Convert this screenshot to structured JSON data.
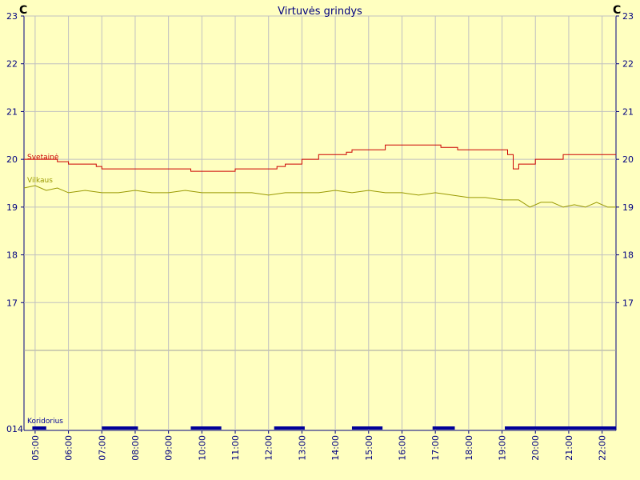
{
  "chart_data": {
    "type": "line",
    "title": "Virtuvės grindys",
    "unit_left": "C",
    "unit_right": "C",
    "y_ticks": [
      "23",
      "22",
      "21",
      "20",
      "19",
      "18",
      "17"
    ],
    "ylim": [
      16,
      23
    ],
    "x_ticks": [
      "05:00",
      "06:00",
      "07:00",
      "08:00",
      "09:00",
      "10:00",
      "11:00",
      "12:00",
      "13:00",
      "14:00",
      "15:00",
      "16:00",
      "17:00",
      "18:00",
      "19:00",
      "20:00",
      "21:00",
      "22:00"
    ],
    "xlim": [
      "04:40",
      "22:25"
    ],
    "grid": true,
    "series": [
      {
        "name": "Svetainė",
        "color": "#cc0000",
        "x": [
          "04:40",
          "05:35",
          "05:40",
          "06:00",
          "06:20",
          "06:50",
          "07:00",
          "09:30",
          "09:40",
          "10:30",
          "11:00",
          "12:00",
          "12:15",
          "12:30",
          "13:00",
          "13:30",
          "14:00",
          "14:20",
          "14:30",
          "15:30",
          "17:00",
          "17:10",
          "17:40",
          "19:00",
          "19:10",
          "19:20",
          "19:30",
          "20:00",
          "20:40",
          "20:50",
          "22:25"
        ],
        "values": [
          20.0,
          20.0,
          19.95,
          19.9,
          19.9,
          19.85,
          19.8,
          19.8,
          19.75,
          19.75,
          19.8,
          19.8,
          19.85,
          19.9,
          20.0,
          20.1,
          20.1,
          20.15,
          20.2,
          20.3,
          20.3,
          20.25,
          20.2,
          20.2,
          20.1,
          19.8,
          19.9,
          20.0,
          20.0,
          20.1,
          20.1
        ]
      },
      {
        "name": "Vilkaus",
        "color": "#999900",
        "x": [
          "04:40",
          "05:00",
          "05:20",
          "05:40",
          "06:00",
          "06:30",
          "07:00",
          "07:30",
          "08:00",
          "08:30",
          "09:00",
          "09:30",
          "10:00",
          "10:30",
          "11:00",
          "11:30",
          "12:00",
          "12:30",
          "13:00",
          "13:30",
          "14:00",
          "14:30",
          "15:00",
          "15:30",
          "16:00",
          "16:30",
          "17:00",
          "17:30",
          "18:00",
          "18:30",
          "19:00",
          "19:30",
          "19:50",
          "20:10",
          "20:30",
          "20:50",
          "21:10",
          "21:30",
          "21:50",
          "22:10",
          "22:25"
        ],
        "values": [
          19.4,
          19.45,
          19.35,
          19.4,
          19.3,
          19.35,
          19.3,
          19.3,
          19.35,
          19.3,
          19.3,
          19.35,
          19.3,
          19.3,
          19.3,
          19.3,
          19.25,
          19.3,
          19.3,
          19.3,
          19.35,
          19.3,
          19.35,
          19.3,
          19.3,
          19.25,
          19.3,
          19.25,
          19.2,
          19.2,
          19.15,
          19.15,
          19.0,
          19.1,
          19.1,
          19.0,
          19.05,
          19.0,
          19.1,
          19.0,
          19.0
        ]
      }
    ],
    "state_channel": {
      "name": "Koridorius",
      "label": "014",
      "color": "#000099",
      "on_intervals": [
        [
          "04:55",
          "05:20"
        ],
        [
          "07:00",
          "08:05"
        ],
        [
          "09:40",
          "10:35"
        ],
        [
          "12:10",
          "13:05"
        ],
        [
          "14:30",
          "15:25"
        ],
        [
          "16:55",
          "17:35"
        ],
        [
          "19:05",
          "22:25"
        ]
      ]
    }
  }
}
